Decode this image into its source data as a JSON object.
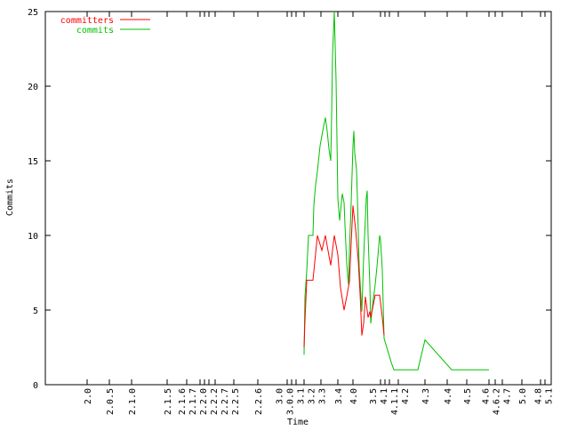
{
  "chart_data": {
    "type": "line",
    "title": "",
    "xlabel": "Time",
    "ylabel": "Commits",
    "xlim": [
      0,
      569
    ],
    "ylim": [
      0,
      25
    ],
    "yticks": [
      0,
      5,
      10,
      15,
      20,
      25
    ],
    "grid": false,
    "legend_position": "top-left",
    "xticks": [
      {
        "label": "2.0",
        "x": 47
      },
      {
        "label": "2.0.5",
        "x": 72
      },
      {
        "label": "2.1.0",
        "x": 97
      },
      {
        "label": "2.1.5",
        "x": 137
      },
      {
        "label": "2.1.6",
        "x": 159
      },
      {
        "label": "2.1.7",
        "x": 174
      },
      {
        "label": "2.2.0",
        "x": 179
      },
      {
        "label": "2.2.2",
        "x": 184
      },
      {
        "label": "2.2.7",
        "x": 191
      },
      {
        "label": "2.2.5",
        "x": 212
      },
      {
        "label": "2.2.6",
        "x": 239
      },
      {
        "label": "3.0",
        "x": 272
      },
      {
        "label": "3.0.0",
        "x": 277
      },
      {
        "label": "3.1",
        "x": 282
      },
      {
        "label": "3.2",
        "x": 291
      },
      {
        "label": "3.3",
        "x": 310
      },
      {
        "label": "3.4",
        "x": 329
      },
      {
        "label": "4.0",
        "x": 346
      },
      {
        "label": "3.5",
        "x": 377
      },
      {
        "label": "4.1",
        "x": 382
      },
      {
        "label": "4.1.1",
        "x": 387
      },
      {
        "label": "4.2",
        "x": 397
      },
      {
        "label": "4.3",
        "x": 427
      },
      {
        "label": "4.4",
        "x": 452
      },
      {
        "label": "4.5",
        "x": 474
      },
      {
        "label": "4.6",
        "x": 499
      },
      {
        "label": "4.6.2",
        "x": 506
      },
      {
        "label": "4.7",
        "x": 514
      },
      {
        "label": "5.0",
        "x": 536
      },
      {
        "label": "4.8",
        "x": 557
      },
      {
        "label": "5.1",
        "x": 562
      }
    ],
    "series": [
      {
        "name": "committers",
        "color": "#ff0000",
        "x": [
          291,
          292,
          294,
          296,
          301,
          306,
          311,
          315,
          317,
          321,
          325,
          329,
          332,
          336,
          339,
          342,
          344,
          346,
          349,
          352,
          354,
          356,
          358,
          360,
          363,
          365,
          366,
          371,
          376,
          379,
          381
        ],
        "y": [
          2.5,
          4.3,
          7,
          7,
          7,
          10,
          9,
          10,
          9.3,
          8,
          10,
          8.7,
          6.5,
          5,
          5.9,
          6.9,
          9.5,
          12,
          10.4,
          8.3,
          6.1,
          3.3,
          4.1,
          5.9,
          4.5,
          4.9,
          4.5,
          6,
          6,
          4.5,
          3.3
        ]
      },
      {
        "name": "commits",
        "color": "#00c000",
        "x": [
          291,
          292,
          294,
          296,
          301,
          302,
          304,
          306,
          309,
          312,
          315,
          317,
          319,
          321,
          322,
          323,
          325,
          327,
          329,
          331,
          334,
          336,
          337,
          339,
          341,
          342,
          344,
          346,
          347,
          348,
          350,
          351,
          353,
          356,
          358,
          361,
          362,
          363,
          365,
          366,
          368,
          371,
          373,
          376,
          377,
          379,
          381,
          386,
          389,
          392,
          419,
          427,
          457,
          499
        ],
        "y": [
          2,
          5.9,
          7.6,
          10,
          10,
          12,
          13.4,
          14.3,
          16,
          17,
          17.9,
          17,
          15.8,
          15,
          18,
          22,
          25,
          20.4,
          12.5,
          11,
          12.8,
          12.2,
          10.7,
          8.1,
          6.7,
          8.9,
          12.2,
          16,
          17,
          15.5,
          14.4,
          12.5,
          7.9,
          4.9,
          8.5,
          12.5,
          13,
          10,
          6.7,
          4.1,
          5.3,
          6.7,
          7.9,
          10,
          9.7,
          7.7,
          3.1,
          2.1,
          1.5,
          1,
          1,
          3,
          1,
          1
        ]
      }
    ]
  }
}
